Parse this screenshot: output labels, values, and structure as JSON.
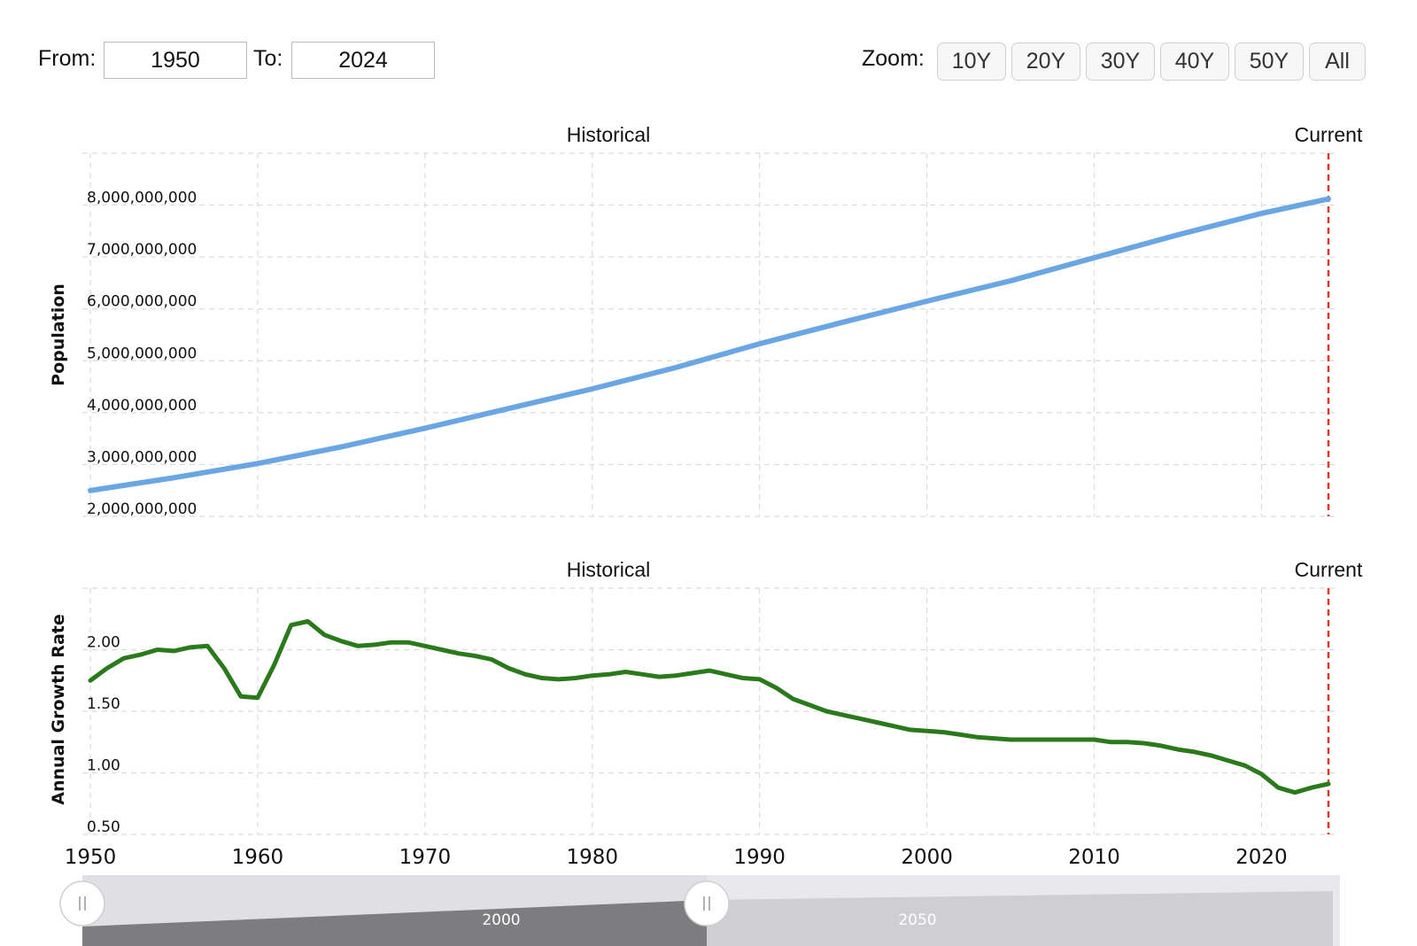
{
  "controls": {
    "from_label": "From:",
    "from_value": "1950",
    "to_label": "To:",
    "to_value": "2024",
    "zoom_label": "Zoom:",
    "zoom_buttons": [
      "10Y",
      "20Y",
      "30Y",
      "40Y",
      "50Y",
      "All"
    ]
  },
  "navigator": {
    "labels": [
      "2000",
      "2050"
    ]
  },
  "colors": {
    "population_line": "#6aa6e3",
    "growth_line": "#2a7a1c",
    "current_marker": "#e0352b",
    "grid": "#dcdcdc"
  },
  "chart_data": [
    {
      "type": "line",
      "top_label_left": "Historical",
      "top_label_right": "Current",
      "ylabel": "Population",
      "xlim": [
        1950,
        2024
      ],
      "ylim": [
        2000000000,
        9000000000
      ],
      "yticks": [
        2000000000,
        3000000000,
        4000000000,
        5000000000,
        6000000000,
        7000000000,
        8000000000
      ],
      "ytick_labels": [
        "2,000,000,000",
        "3,000,000,000",
        "4,000,000,000",
        "5,000,000,000",
        "6,000,000,000",
        "7,000,000,000",
        "8,000,000,000"
      ],
      "current_marker_x": 2024,
      "grid": true,
      "series": [
        {
          "x": [
            1950,
            1955,
            1960,
            1965,
            1970,
            1975,
            1980,
            1985,
            1990,
            1995,
            2000,
            2005,
            2010,
            2015,
            2020,
            2024
          ],
          "values": [
            2499000000,
            2746000000,
            3019000000,
            3340000000,
            3700000000,
            4079000000,
            4458000000,
            4870000000,
            5327000000,
            5744000000,
            6149000000,
            6542000000,
            6985000000,
            7427000000,
            7841000000,
            8119000000
          ]
        }
      ]
    },
    {
      "type": "line",
      "top_label_left": "Historical",
      "top_label_right": "Current",
      "ylabel": "Annual Growth Rate",
      "xlim": [
        1950,
        2024
      ],
      "ylim": [
        0.5,
        2.5
      ],
      "yticks": [
        0.5,
        1.0,
        1.5,
        2.0
      ],
      "ytick_labels": [
        "0.50",
        "1.00",
        "1.50",
        "2.00"
      ],
      "xticks": [
        1950,
        1960,
        1970,
        1980,
        1990,
        2000,
        2010,
        2020
      ],
      "xtick_labels": [
        "1950",
        "1960",
        "1970",
        "1980",
        "1990",
        "2000",
        "2010",
        "2020"
      ],
      "current_marker_x": 2024,
      "grid": true,
      "series": [
        {
          "x": [
            1950,
            1951,
            1952,
            1953,
            1954,
            1955,
            1956,
            1957,
            1958,
            1959,
            1960,
            1961,
            1962,
            1963,
            1964,
            1965,
            1966,
            1967,
            1968,
            1969,
            1970,
            1971,
            1972,
            1973,
            1974,
            1975,
            1976,
            1977,
            1978,
            1979,
            1980,
            1981,
            1982,
            1983,
            1984,
            1985,
            1986,
            1987,
            1988,
            1989,
            1990,
            1991,
            1992,
            1993,
            1994,
            1995,
            1996,
            1997,
            1998,
            1999,
            2000,
            2001,
            2002,
            2003,
            2004,
            2005,
            2006,
            2007,
            2008,
            2009,
            2010,
            2011,
            2012,
            2013,
            2014,
            2015,
            2016,
            2017,
            2018,
            2019,
            2020,
            2021,
            2022,
            2023,
            2024
          ],
          "values": [
            1.75,
            1.85,
            1.93,
            1.96,
            2.0,
            1.99,
            2.02,
            2.03,
            1.85,
            1.62,
            1.61,
            1.88,
            2.2,
            2.23,
            2.12,
            2.07,
            2.03,
            2.04,
            2.06,
            2.06,
            2.03,
            2.0,
            1.97,
            1.95,
            1.92,
            1.85,
            1.8,
            1.77,
            1.76,
            1.77,
            1.79,
            1.8,
            1.82,
            1.8,
            1.78,
            1.79,
            1.81,
            1.83,
            1.8,
            1.77,
            1.76,
            1.69,
            1.6,
            1.55,
            1.5,
            1.47,
            1.44,
            1.41,
            1.38,
            1.35,
            1.34,
            1.33,
            1.31,
            1.29,
            1.28,
            1.27,
            1.27,
            1.27,
            1.27,
            1.27,
            1.27,
            1.25,
            1.25,
            1.24,
            1.22,
            1.19,
            1.17,
            1.14,
            1.1,
            1.06,
            0.99,
            0.88,
            0.84,
            0.88,
            0.91
          ]
        }
      ]
    }
  ]
}
